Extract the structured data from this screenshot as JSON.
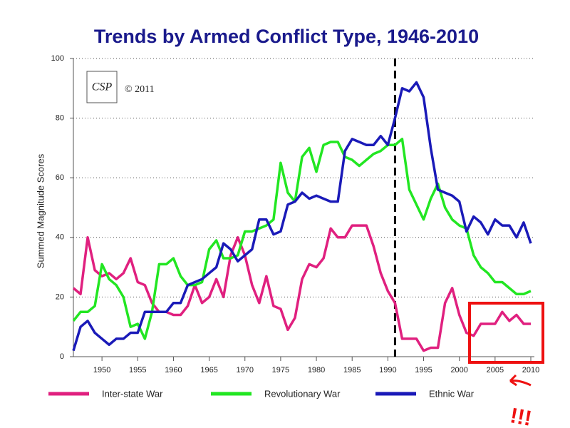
{
  "chart_data": {
    "type": "line",
    "title": "Trends by Armed Conflict Type, 1946-2010",
    "ylabel": "Summed Magnitude Scores",
    "logo": "CSP",
    "copyright": "© 2011",
    "annotation": "!!!",
    "vline": 1991,
    "grid": true,
    "legend": "bottom",
    "xlim": [
      1946,
      2010
    ],
    "ylim": [
      0,
      100
    ],
    "xticks": [
      1950,
      1955,
      1960,
      1965,
      1970,
      1975,
      1980,
      1985,
      1990,
      1995,
      2000,
      2005,
      2010
    ],
    "yticks": [
      0,
      20,
      40,
      60,
      80,
      100
    ],
    "x": [
      1946,
      1947,
      1948,
      1949,
      1950,
      1951,
      1952,
      1953,
      1954,
      1955,
      1956,
      1957,
      1958,
      1959,
      1960,
      1961,
      1962,
      1963,
      1964,
      1965,
      1966,
      1967,
      1968,
      1969,
      1970,
      1971,
      1972,
      1973,
      1974,
      1975,
      1976,
      1977,
      1978,
      1979,
      1980,
      1981,
      1982,
      1983,
      1984,
      1985,
      1986,
      1987,
      1988,
      1989,
      1990,
      1991,
      1992,
      1993,
      1994,
      1995,
      1996,
      1997,
      1998,
      1999,
      2000,
      2001,
      2002,
      2003,
      2004,
      2005,
      2006,
      2007,
      2008,
      2009,
      2010
    ],
    "series": [
      {
        "name": "Inter-state War",
        "color": "#e0207f",
        "values": [
          23,
          21,
          40,
          29,
          27,
          28,
          26,
          28,
          33,
          25,
          24,
          18,
          15,
          15,
          14,
          14,
          17,
          24,
          18,
          20,
          26,
          20,
          34,
          40,
          34,
          24,
          18,
          27,
          17,
          16,
          9,
          13,
          26,
          31,
          30,
          33,
          43,
          40,
          40,
          44,
          44,
          44,
          37,
          28,
          22,
          18,
          6,
          6,
          6,
          2,
          3,
          3,
          18,
          23,
          14,
          8,
          7,
          11,
          11,
          11,
          15,
          12,
          14,
          11,
          11
        ]
      },
      {
        "name": "Revolutionary War",
        "color": "#22e622",
        "values": [
          12,
          15,
          15,
          17,
          31,
          26,
          24,
          20,
          10,
          11,
          6,
          15,
          31,
          31,
          33,
          27,
          24,
          24,
          25,
          36,
          39,
          33,
          33,
          34,
          42,
          42,
          43,
          44,
          46,
          65,
          55,
          52,
          67,
          70,
          62,
          71,
          72,
          72,
          67,
          66,
          64,
          66,
          68,
          69,
          71,
          71,
          73,
          56,
          51,
          46,
          53,
          58,
          50,
          46,
          44,
          43,
          34,
          30,
          28,
          25,
          25,
          23,
          21,
          21,
          22
        ]
      },
      {
        "name": "Ethnic War",
        "color": "#1a1ab8",
        "values": [
          2,
          10,
          12,
          8,
          6,
          4,
          6,
          6,
          8,
          8,
          15,
          15,
          15,
          15,
          18,
          18,
          24,
          25,
          26,
          28,
          30,
          38,
          36,
          32,
          34,
          36,
          46,
          46,
          41,
          42,
          51,
          52,
          55,
          53,
          54,
          53,
          52,
          52,
          69,
          73,
          72,
          71,
          71,
          74,
          71,
          80,
          90,
          89,
          92,
          87,
          70,
          56,
          55,
          54,
          52,
          42,
          47,
          45,
          41,
          46,
          44,
          44,
          40,
          45,
          38
        ]
      }
    ]
  }
}
